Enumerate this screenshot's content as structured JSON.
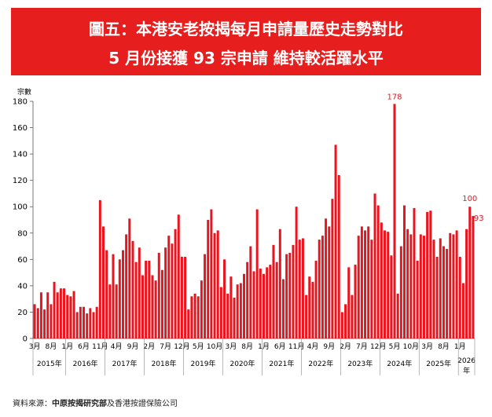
{
  "header": {
    "title_line1": "圖五：本港安老按揭每月申請量歷史走勢對比",
    "title_line2": "5 月份接獲 93 宗申請 維持較活躍水平"
  },
  "source": {
    "prefix": "資料來源：",
    "org": "中原按揭研究部",
    "suffix": "及香港按證保險公司"
  },
  "colors": {
    "bar": "#e8141e",
    "banner": "#e61e1e",
    "label": "#e8141e"
  },
  "chart_data": {
    "type": "bar",
    "ylabel": "宗數",
    "ylim": [
      0,
      180
    ],
    "yticks": [
      0,
      20,
      40,
      60,
      80,
      100,
      120,
      140,
      160,
      180
    ],
    "start_month": "2015-03",
    "values": [
      26,
      23,
      35,
      22,
      35,
      26,
      43,
      35,
      38,
      38,
      33,
      32,
      36,
      20,
      24,
      24,
      19,
      23,
      20,
      24,
      105,
      85,
      67,
      41,
      64,
      41,
      60,
      67,
      79,
      91,
      74,
      58,
      69,
      48,
      59,
      59,
      48,
      44,
      65,
      52,
      69,
      78,
      72,
      83,
      94,
      62,
      62,
      22,
      32,
      34,
      32,
      44,
      64,
      90,
      98,
      80,
      82,
      39,
      60,
      34,
      47,
      31,
      41,
      42,
      49,
      58,
      70,
      51,
      98,
      53,
      49,
      54,
      56,
      71,
      58,
      83,
      45,
      64,
      65,
      71,
      100,
      75,
      76,
      33,
      47,
      43,
      59,
      75,
      78,
      91,
      85,
      106,
      147,
      124,
      20,
      26,
      54,
      33,
      56,
      78,
      85,
      82,
      85,
      75,
      110,
      101,
      88,
      82,
      81,
      63,
      178,
      34,
      70,
      101,
      83,
      79,
      99,
      59,
      79,
      78,
      96,
      97,
      75,
      62,
      76,
      70,
      68,
      80,
      79,
      82,
      62,
      42,
      83,
      100,
      93
    ],
    "month_tick_labels": [
      "3月",
      "8月",
      "1月",
      "6月",
      "11月",
      "4月",
      "9月",
      "2月",
      "7月",
      "12月",
      "5月",
      "10月",
      "3月",
      "8月",
      "1月",
      "6月",
      "11月",
      "4月",
      "9月",
      "2月",
      "7月",
      "12月",
      "5月",
      "10月",
      "3月",
      "8月",
      "1月"
    ],
    "year_labels": [
      "2015年",
      "2016年",
      "2017年",
      "2018年",
      "2019年",
      "2020年",
      "2021年",
      "2022年",
      "2023年",
      "2024年",
      "2025年",
      "2026年"
    ],
    "annotations": [
      {
        "month": "2024-05",
        "value": 178,
        "text": "178"
      },
      {
        "month": "2026-04",
        "value": 100,
        "text": "100"
      },
      {
        "month": "2026-05",
        "value": 93,
        "text": "93"
      }
    ]
  }
}
